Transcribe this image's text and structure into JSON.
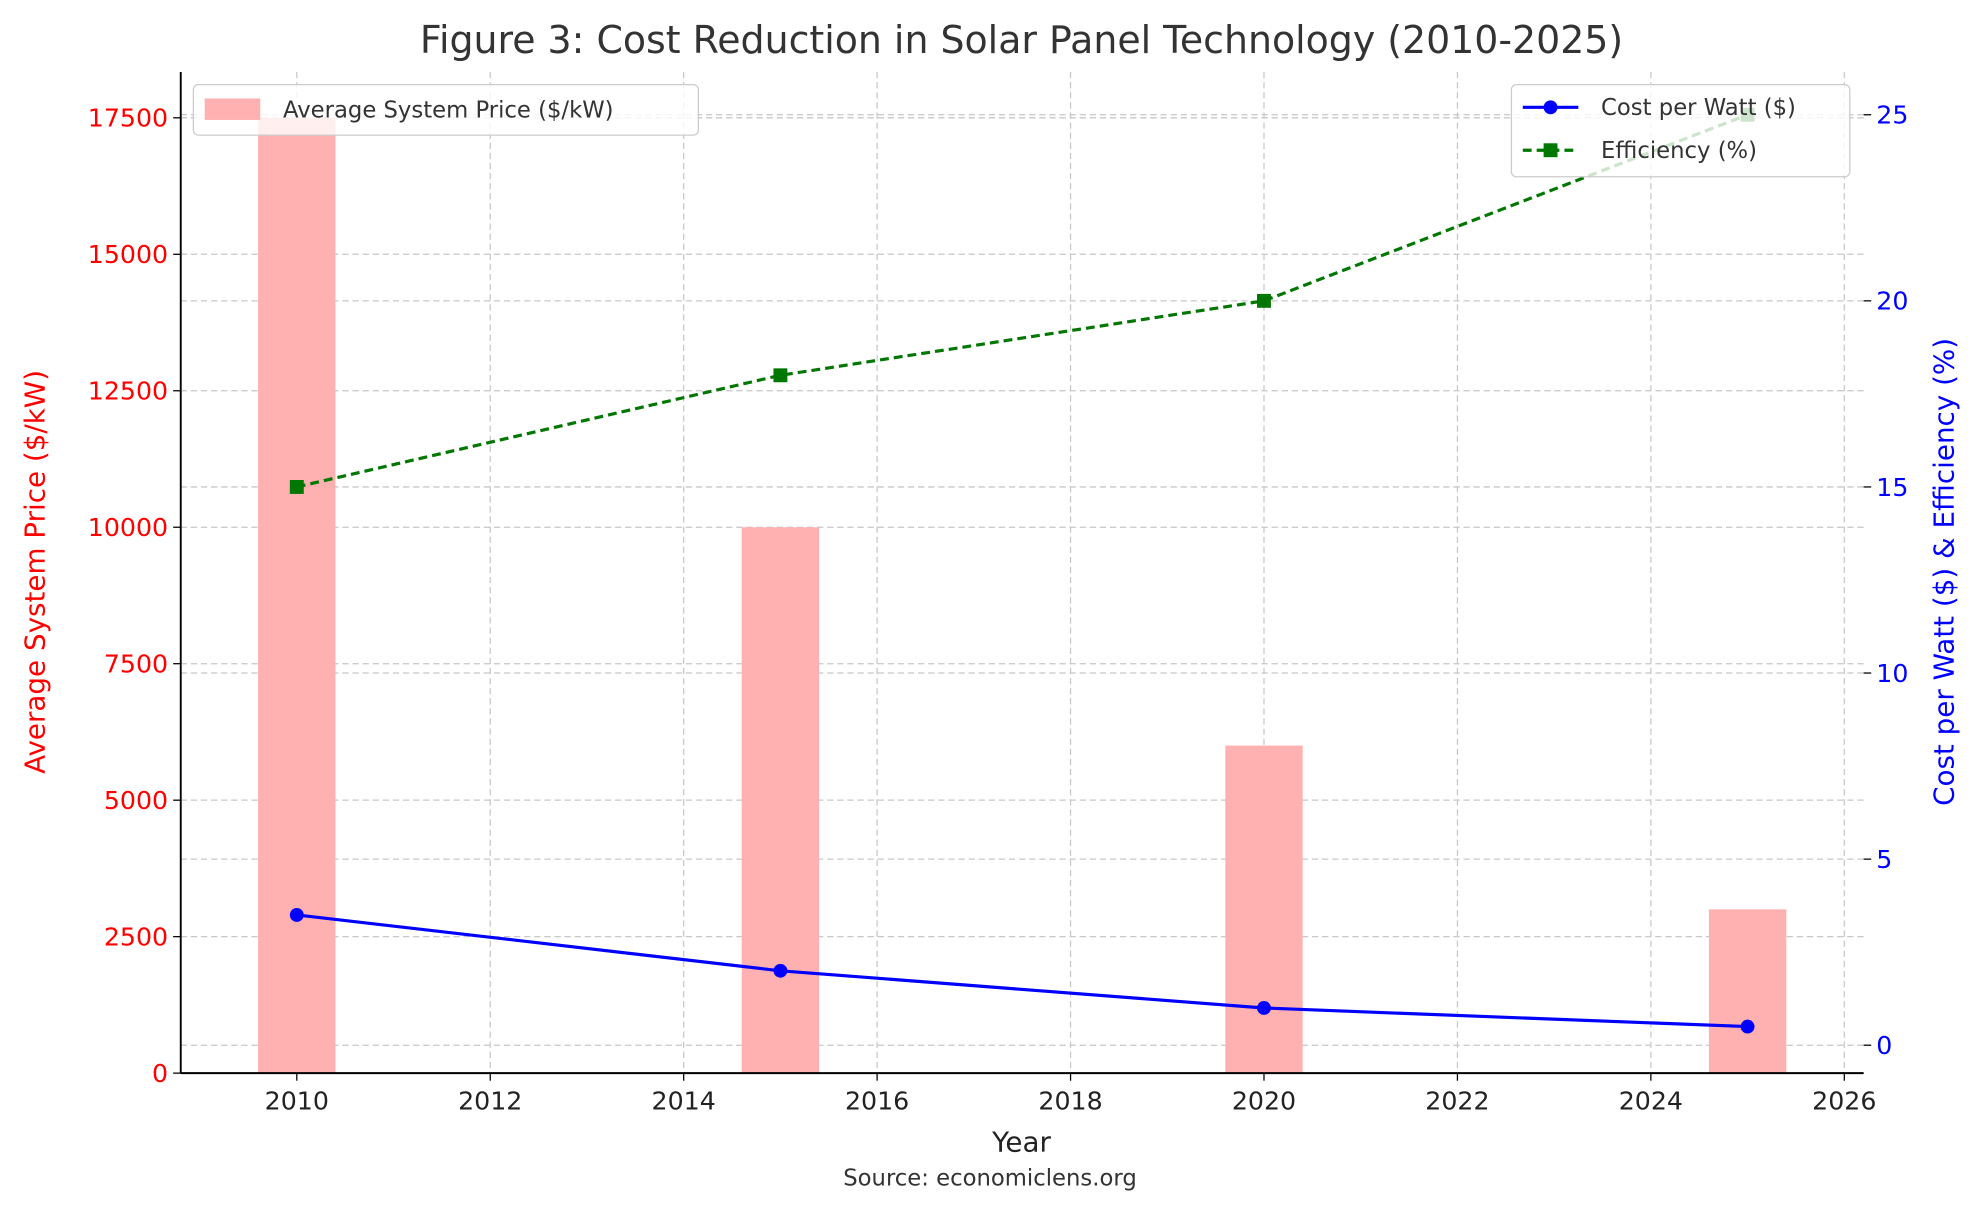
{
  "chart_data": {
    "type": "bar+line",
    "title": "Figure 3: Cost Reduction in Solar Panel Technology (2010-2025)",
    "xlabel": "Year",
    "ylabel_left": "Average System Price ($/kW)",
    "ylabel_right": "Cost per Watt ($) & Efficiency (%)",
    "source": "Source: economiclens.org",
    "x": [
      2010,
      2015,
      2020,
      2025
    ],
    "xlim": [
      2008.8,
      2026.2
    ],
    "ylim_left": [
      0,
      18340
    ],
    "ylim_right": [
      -0.75,
      26.15
    ],
    "xticks": [
      2010,
      2012,
      2014,
      2016,
      2018,
      2020,
      2022,
      2024,
      2026
    ],
    "yticks_left": [
      0,
      2500,
      5000,
      7500,
      10000,
      12500,
      15000,
      17500
    ],
    "yticks_right": [
      0,
      5,
      10,
      15,
      20,
      25
    ],
    "grid": true,
    "bar_series": {
      "name": "Average System Price ($/kW)",
      "values": [
        17500,
        10000,
        6000,
        3000
      ],
      "color": "#ffb0b0",
      "axis": "left",
      "bar_width_years": 0.8
    },
    "line_series": [
      {
        "name": "Cost per Watt ($)",
        "values": [
          3.5,
          2.0,
          1.0,
          0.5
        ],
        "color": "#0000ff",
        "style": "solid",
        "marker": "circle",
        "axis": "right"
      },
      {
        "name": "Efficiency (%)",
        "values": [
          15,
          18,
          20,
          25
        ],
        "color": "#007700",
        "style": "dashed",
        "marker": "square",
        "axis": "right"
      }
    ],
    "legend_left": "top-left",
    "legend_right": "top-right",
    "left_axis_color": "#ff0000",
    "right_axis_color": "#0000ff"
  }
}
